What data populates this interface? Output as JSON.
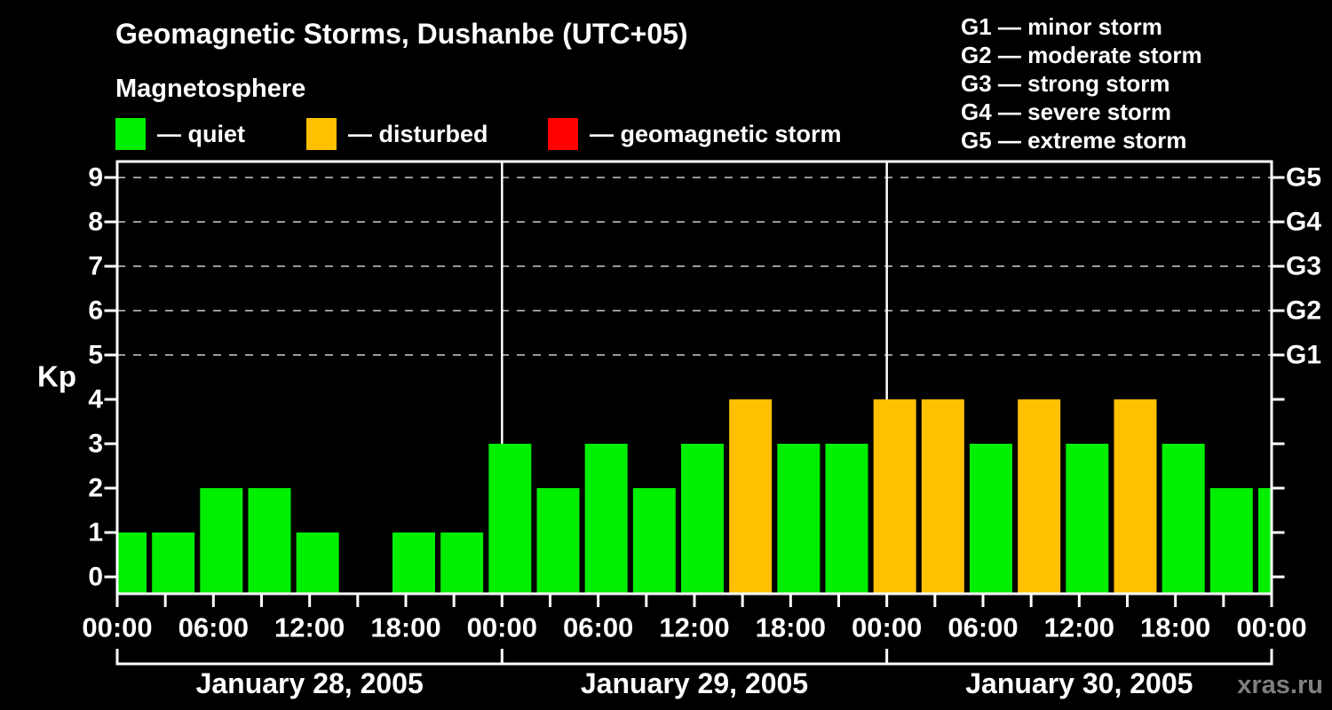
{
  "chart_data": {
    "type": "bar",
    "title": "Geomagnetic Storms, Dushanbe (UTC+05)",
    "subtitle": "Magnetosphere",
    "ylabel": "Kp",
    "ylim": [
      0,
      9
    ],
    "yticks": [
      0,
      1,
      2,
      3,
      4,
      5,
      6,
      7,
      8,
      9
    ],
    "interval_hours": 3,
    "span_hours": 72,
    "x_hours": [
      0,
      3,
      6,
      9,
      12,
      15,
      18,
      21,
      24,
      27,
      30,
      33,
      36,
      39,
      42,
      45,
      48,
      51,
      54,
      57,
      60,
      63,
      66,
      69,
      72
    ],
    "values": [
      1,
      1,
      2,
      2,
      1,
      0,
      1,
      1,
      3,
      2,
      3,
      2,
      3,
      4,
      3,
      3,
      4,
      4,
      3,
      4,
      3,
      4,
      3,
      2,
      2
    ],
    "colors": {
      "quiet": "#00EE00",
      "disturbed": "#FFC000",
      "storm": "#FF0000"
    },
    "color_rule": {
      "quiet_max_kp": 3,
      "disturbed_kp": 4,
      "storm_min_kp": 5
    },
    "gridlines_at": [
      5,
      6,
      7,
      8,
      9
    ],
    "grid_color": "#999999",
    "right_axis_labels": [
      {
        "label": "G1",
        "kp": 5
      },
      {
        "label": "G2",
        "kp": 6
      },
      {
        "label": "G3",
        "kp": 7
      },
      {
        "label": "G4",
        "kp": 8
      },
      {
        "label": "G5",
        "kp": 9
      }
    ],
    "xtick_labels": [
      "00:00",
      "06:00",
      "12:00",
      "18:00",
      "00:00",
      "06:00",
      "12:00",
      "18:00",
      "00:00",
      "06:00",
      "12:00",
      "18:00",
      "00:00"
    ],
    "day_sections": [
      {
        "label": "January 28, 2005",
        "start_hour": 0,
        "end_hour": 24
      },
      {
        "label": "January 29, 2005",
        "start_hour": 24,
        "end_hour": 48
      },
      {
        "label": "January 30, 2005",
        "start_hour": 48,
        "end_hour": 72
      }
    ]
  },
  "legend": {
    "items": [
      {
        "label": "— quiet",
        "color": "#00EE00"
      },
      {
        "label": "— disturbed",
        "color": "#FFC000"
      },
      {
        "label": "— geomagnetic storm",
        "color": "#FF0000"
      }
    ]
  },
  "storm_scale_legend": [
    "G1 — minor storm",
    "G2 — moderate storm",
    "G3 — strong storm",
    "G4 — severe storm",
    "G5 — extreme storm"
  ],
  "watermark": {
    "label": "xras.ru",
    "color": "#7F7F7F"
  }
}
